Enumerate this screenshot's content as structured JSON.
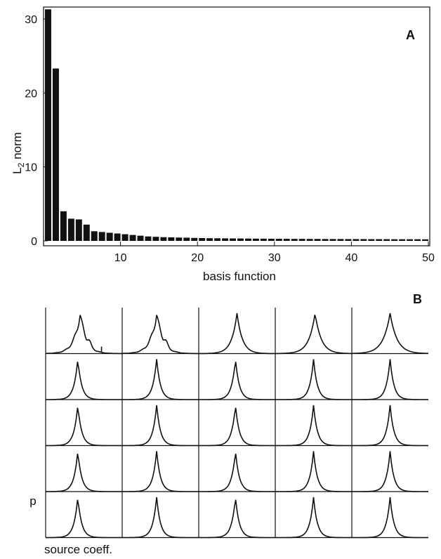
{
  "panels": {
    "a_label": "A",
    "b_label": "B"
  },
  "chart_data": [
    {
      "type": "bar",
      "panel": "A",
      "xlabel": "basis function",
      "ylabel_main": "L",
      "ylabel_sub": "2",
      "ylabel_rest": " norm",
      "xlim": [
        0,
        50
      ],
      "ylim": [
        0,
        32
      ],
      "xticks": [
        10,
        20,
        30,
        40,
        50
      ],
      "yticks": [
        0,
        10,
        20,
        30
      ],
      "x": [
        1,
        2,
        3,
        4,
        5,
        6,
        7,
        8,
        9,
        10,
        11,
        12,
        13,
        14,
        15,
        16,
        17,
        18,
        19,
        20,
        21,
        22,
        23,
        24,
        25,
        26,
        27,
        28,
        29,
        30,
        31,
        32,
        33,
        34,
        35,
        36,
        37,
        38,
        39,
        40,
        41,
        42,
        43,
        44,
        45,
        46,
        47,
        48,
        49,
        50
      ],
      "values": [
        31.3,
        23.3,
        4.0,
        3.0,
        2.9,
        2.2,
        1.3,
        1.2,
        1.1,
        1.0,
        0.9,
        0.8,
        0.7,
        0.6,
        0.55,
        0.5,
        0.48,
        0.45,
        0.43,
        0.4,
        0.38,
        0.36,
        0.35,
        0.34,
        0.33,
        0.32,
        0.31,
        0.3,
        0.3,
        0.29,
        0.28,
        0.28,
        0.27,
        0.27,
        0.26,
        0.26,
        0.25,
        0.25,
        0.25,
        0.24,
        0.24,
        0.24,
        0.23,
        0.23,
        0.23,
        0.22,
        0.22,
        0.22,
        0.22,
        0.21
      ],
      "bar_color": "#111111"
    },
    {
      "type": "line",
      "panel": "B",
      "grid": {
        "rows": 5,
        "cols": 5
      },
      "ylabel": "p",
      "xlabel": "source coeff.",
      "cells": [
        [
          {
            "center": 0.45,
            "width": 0.08,
            "irregular": true
          },
          {
            "center": 0.45,
            "width": 0.08,
            "irregular": true
          },
          {
            "center": 0.5,
            "width": 0.07,
            "irregular": false
          },
          {
            "center": 0.52,
            "width": 0.08,
            "irregular": false
          },
          {
            "center": 0.5,
            "width": 0.09,
            "irregular": false
          }
        ],
        [
          {
            "center": 0.42,
            "width": 0.05,
            "irregular": false
          },
          {
            "center": 0.45,
            "width": 0.05,
            "irregular": false
          },
          {
            "center": 0.48,
            "width": 0.05,
            "irregular": false
          },
          {
            "center": 0.5,
            "width": 0.05,
            "irregular": false
          },
          {
            "center": 0.5,
            "width": 0.05,
            "irregular": false
          }
        ],
        [
          {
            "center": 0.42,
            "width": 0.05,
            "irregular": false
          },
          {
            "center": 0.45,
            "width": 0.05,
            "irregular": false
          },
          {
            "center": 0.48,
            "width": 0.05,
            "irregular": false
          },
          {
            "center": 0.5,
            "width": 0.05,
            "irregular": false
          },
          {
            "center": 0.5,
            "width": 0.05,
            "irregular": false
          }
        ],
        [
          {
            "center": 0.42,
            "width": 0.05,
            "irregular": false
          },
          {
            "center": 0.45,
            "width": 0.05,
            "irregular": false
          },
          {
            "center": 0.48,
            "width": 0.05,
            "irregular": false
          },
          {
            "center": 0.5,
            "width": 0.05,
            "irregular": false
          },
          {
            "center": 0.5,
            "width": 0.05,
            "irregular": false
          }
        ],
        [
          {
            "center": 0.42,
            "width": 0.05,
            "irregular": false
          },
          {
            "center": 0.45,
            "width": 0.05,
            "irregular": false
          },
          {
            "center": 0.48,
            "width": 0.05,
            "irregular": false
          },
          {
            "center": 0.5,
            "width": 0.05,
            "irregular": false
          },
          {
            "center": 0.5,
            "width": 0.05,
            "irregular": false
          }
        ]
      ]
    }
  ]
}
